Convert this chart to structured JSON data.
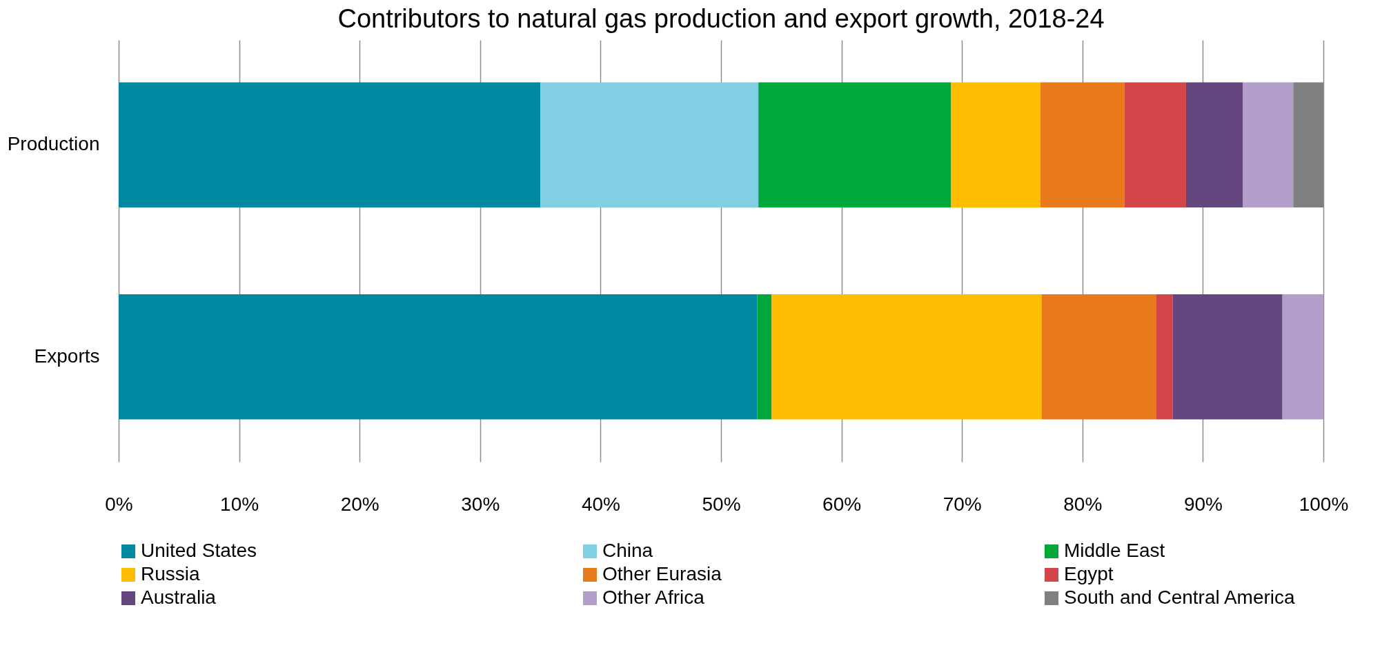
{
  "chart_data": {
    "type": "bar",
    "title": "Contributors to natural gas production and export growth, 2018-24",
    "orientation": "horizontal",
    "stacked": true,
    "categories": [
      "Production",
      "Exports"
    ],
    "series": [
      {
        "name": "United States",
        "color": "#0088a0",
        "values": [
          35.0,
          53.0
        ]
      },
      {
        "name": "China",
        "color": "#82cfe3",
        "values": [
          18.1,
          null
        ]
      },
      {
        "name": "Middle East",
        "color": "#00a83c",
        "values": [
          16.0,
          1.2
        ]
      },
      {
        "name": "Russia",
        "color": "#fdbd00",
        "values": [
          7.4,
          22.4
        ]
      },
      {
        "name": "Other Eurasia",
        "color": "#e87a1b",
        "values": [
          7.0,
          9.5
        ]
      },
      {
        "name": "Egypt",
        "color": "#d2464a",
        "values": [
          5.1,
          1.4
        ]
      },
      {
        "name": "Australia",
        "color": "#63477e",
        "values": [
          4.7,
          9.1
        ]
      },
      {
        "name": "Other Africa",
        "color": "#b39ec9",
        "values": [
          4.2,
          3.4
        ]
      },
      {
        "name": "South and Central America",
        "color": "#7f7f7f",
        "values": [
          2.5,
          null
        ]
      }
    ],
    "xlim": [
      0,
      100
    ],
    "xticks": [
      {
        "value": 0,
        "label": "0%"
      },
      {
        "value": 10,
        "label": "10%"
      },
      {
        "value": 20,
        "label": "20%"
      },
      {
        "value": 30,
        "label": "30%"
      },
      {
        "value": 40,
        "label": "40%"
      },
      {
        "value": 50,
        "label": "50%"
      },
      {
        "value": 60,
        "label": "60%"
      },
      {
        "value": 70,
        "label": "70%"
      },
      {
        "value": 80,
        "label": "80%"
      },
      {
        "value": 90,
        "label": "90%"
      },
      {
        "value": 100,
        "label": "100%"
      }
    ],
    "grid": "x",
    "legend": "bottom"
  }
}
